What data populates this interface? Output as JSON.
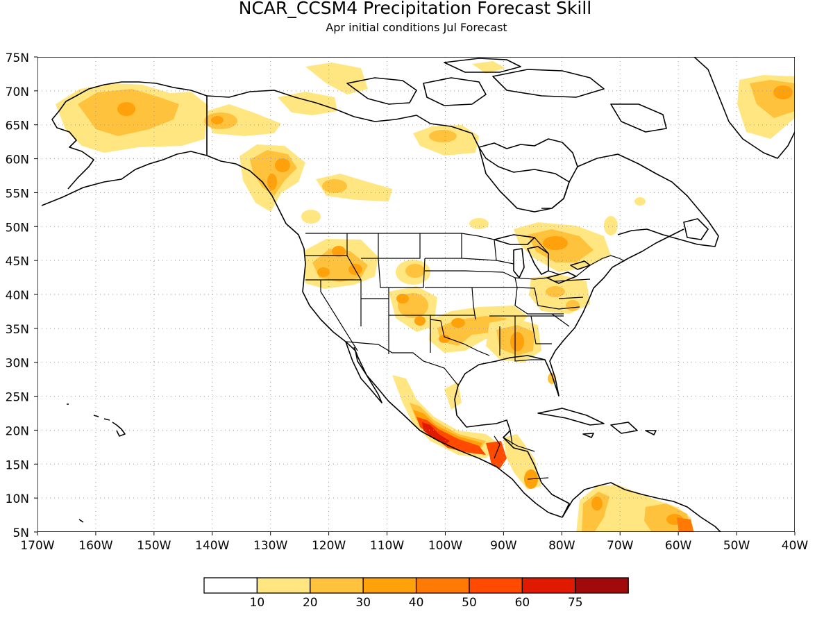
{
  "title": "NCAR_CCSM4 Precipitation Forecast Skill",
  "subtitle": "Apr initial conditions  Jul Forecast",
  "lat_labels": [
    "75N",
    "70N",
    "65N",
    "60N",
    "55N",
    "50N",
    "45N",
    "40N",
    "35N",
    "30N",
    "25N",
    "20N",
    "15N",
    "10N",
    "5N"
  ],
  "lon_labels": [
    "170W",
    "160W",
    "150W",
    "140W",
    "130W",
    "120W",
    "110W",
    "100W",
    "90W",
    "80W",
    "70W",
    "60W",
    "50W",
    "40W"
  ],
  "colorbar": {
    "colors": [
      "#ffffff",
      "#ffe680",
      "#ffc23d",
      "#ffa10a",
      "#ff7a05",
      "#ff4a00",
      "#e01a00",
      "#a00a0a"
    ],
    "labels": [
      "10",
      "20",
      "30",
      "40",
      "50",
      "60",
      "75"
    ]
  },
  "skill_colors": {
    "c10": "#ffe680",
    "c20": "#ffc23d",
    "c30": "#ffa10a",
    "c40": "#ff7a05",
    "c50": "#ff4a00",
    "c60": "#e01a00"
  }
}
